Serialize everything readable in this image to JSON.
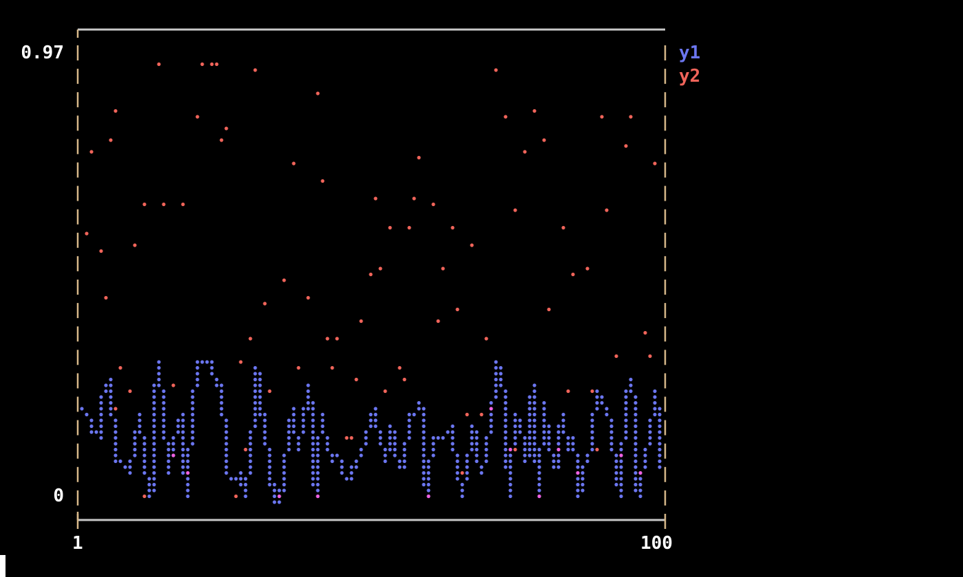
{
  "chart_data": {
    "type": "scatter",
    "title": "",
    "xlabel": "",
    "ylabel": "",
    "xlim": [
      1,
      100
    ],
    "ylim": [
      0,
      0.97
    ],
    "x_tick_labels": [
      "1",
      "100"
    ],
    "y_tick_labels": [
      "0.97",
      "0"
    ],
    "grid": false,
    "legend_placement": "right",
    "series": [
      {
        "name": "y1",
        "style": "line",
        "color": "#6b76f0",
        "x": [
          1,
          2,
          3,
          4,
          5,
          6,
          7,
          8,
          9,
          10,
          11,
          12,
          13,
          14,
          15,
          16,
          17,
          18,
          19,
          20,
          21,
          22,
          23,
          24,
          25,
          26,
          27,
          28,
          29,
          30,
          31,
          32,
          33,
          34,
          35,
          36,
          37,
          38,
          39,
          40,
          41,
          42,
          43,
          44,
          45,
          46,
          47,
          48,
          49,
          50,
          51,
          52,
          53,
          54,
          55,
          56,
          57,
          58,
          59,
          60,
          61,
          62,
          63,
          64,
          65,
          66,
          67,
          68,
          69,
          70,
          71,
          72,
          73,
          74,
          75,
          76,
          77,
          78,
          79,
          80,
          81,
          82,
          83,
          84,
          85,
          86,
          87,
          88,
          89,
          90,
          91,
          92,
          93,
          94,
          95,
          96,
          97,
          98,
          99,
          100
        ],
        "y": [
          0.21,
          0.2,
          0.16,
          0.15,
          0.25,
          0.27,
          0.1,
          0.1,
          0.07,
          0.12,
          0.19,
          0.07,
          0.03,
          0.3,
          0.22,
          0.07,
          0.15,
          0.19,
          0.02,
          0.21,
          0.3,
          0.31,
          0.31,
          0.26,
          0.26,
          0.07,
          0.06,
          0.07,
          0.03,
          0.12,
          0.29,
          0.19,
          0.1,
          0.01,
          0.02,
          0.11,
          0.21,
          0.12,
          0.19,
          0.26,
          0.03,
          0.19,
          0.12,
          0.1,
          0.11,
          0.06,
          0.06,
          0.1,
          0.12,
          0.17,
          0.21,
          0.15,
          0.1,
          0.17,
          0.1,
          0.08,
          0.19,
          0.2,
          0.22,
          0.02,
          0.15,
          0.15,
          0.15,
          0.17,
          0.1,
          0.03,
          0.1,
          0.17,
          0.07,
          0.1,
          0.2,
          0.3,
          0.25,
          0.03,
          0.19,
          0.17,
          0.1,
          0.26,
          0.03,
          0.22,
          0.12,
          0.08,
          0.19,
          0.12,
          0.15,
          0.03,
          0.1,
          0.12,
          0.25,
          0.22,
          0.2,
          0.1,
          0.03,
          0.25,
          0.27,
          0.03,
          0.1,
          0.15,
          0.25,
          0.08
        ]
      },
      {
        "name": "y2",
        "style": "scatter",
        "color": "#f0645a",
        "x": [
          2,
          3,
          4,
          5,
          6,
          7,
          8,
          9,
          10,
          12,
          14,
          15,
          17,
          18,
          21,
          22,
          23,
          24,
          25,
          26,
          28,
          29,
          30,
          31,
          32,
          33,
          36,
          37,
          38,
          40,
          41,
          42,
          43,
          44,
          45,
          46,
          47,
          48,
          49,
          50,
          51,
          52,
          53,
          54,
          55,
          56,
          57,
          58,
          59,
          61,
          62,
          63,
          64,
          65,
          67,
          68,
          69,
          70,
          72,
          73,
          75,
          77,
          78,
          80,
          81,
          83,
          84,
          85,
          87,
          88,
          90,
          91,
          92,
          94,
          95,
          97,
          98,
          99,
          7,
          12,
          17,
          19,
          27,
          35,
          41,
          60,
          66,
          71,
          74,
          75,
          79,
          82,
          86,
          89,
          93,
          96
        ],
        "y": [
          0.57,
          0.74,
          0.54,
          0.44,
          0.77,
          0.83,
          0.29,
          0.24,
          0.55,
          0.63,
          0.92,
          0.63,
          0.26,
          0.63,
          0.82,
          0.92,
          0.93,
          0.92,
          0.77,
          0.79,
          0.3,
          0.12,
          0.35,
          0.91,
          0.43,
          0.24,
          0.48,
          0.72,
          0.29,
          0.44,
          0.86,
          0.68,
          0.35,
          0.29,
          0.35,
          0.15,
          0.15,
          0.27,
          0.39,
          0.49,
          0.64,
          0.5,
          0.25,
          0.58,
          0.29,
          0.27,
          0.59,
          0.64,
          0.73,
          0.63,
          0.39,
          0.5,
          0.59,
          0.41,
          0.2,
          0.55,
          0.2,
          0.35,
          0.91,
          0.81,
          0.62,
          0.74,
          0.83,
          0.77,
          0.41,
          0.59,
          0.25,
          0.49,
          0.5,
          0.25,
          0.81,
          0.62,
          0.32,
          0.76,
          0.82,
          0.36,
          0.32,
          0.72,
          0.21,
          0.02,
          0.11,
          0.07,
          0.02,
          0.02,
          0.02,
          0.02,
          0.07,
          0.21,
          0.12,
          0.12,
          0.02,
          0.12,
          0.07,
          0.12,
          0.11,
          0.07
        ]
      }
    ]
  },
  "colors": {
    "frame": "#c8c8c8",
    "axis_tick": "#d8b98a",
    "overlap": "#f060e0"
  }
}
